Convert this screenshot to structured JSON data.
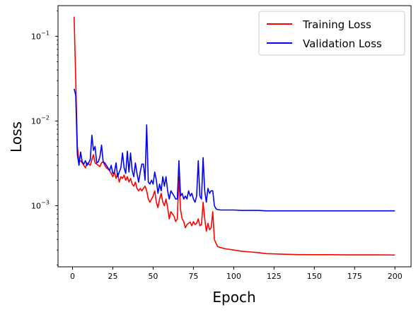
{
  "chart_data": {
    "type": "line",
    "title": "",
    "xlabel": "Epoch",
    "ylabel": "Loss",
    "xscale": "linear",
    "yscale": "log",
    "xlim": [
      -9,
      210
    ],
    "ylim": [
      0.00019,
      0.23
    ],
    "xticks": [
      0,
      25,
      50,
      75,
      100,
      125,
      150,
      175,
      200
    ],
    "xtick_labels": [
      "0",
      "25",
      "50",
      "75",
      "100",
      "125",
      "150",
      "175",
      "200"
    ],
    "yticks": [
      0.001,
      0.01,
      0.1
    ],
    "ytick_labels": [
      "10",
      "10",
      "10"
    ],
    "ytick_exponents": [
      "−3",
      "−2",
      "−1"
    ],
    "grid": false,
    "legend_position": "top-right",
    "series": [
      {
        "name": "Training Loss",
        "color": "#ff0000",
        "x": [
          1,
          2,
          3,
          4,
          5,
          6,
          7,
          8,
          9,
          10,
          11,
          12,
          13,
          14,
          15,
          16,
          17,
          18,
          19,
          20,
          21,
          22,
          23,
          24,
          25,
          26,
          27,
          28,
          29,
          30,
          31,
          32,
          33,
          34,
          35,
          36,
          37,
          38,
          39,
          40,
          41,
          42,
          43,
          44,
          45,
          46,
          47,
          48,
          49,
          50,
          51,
          52,
          53,
          54,
          55,
          56,
          57,
          58,
          59,
          60,
          61,
          62,
          63,
          64,
          65,
          66,
          67,
          68,
          69,
          70,
          71,
          72,
          73,
          74,
          75,
          76,
          77,
          78,
          79,
          80,
          81,
          82,
          83,
          84,
          85,
          86,
          87,
          88,
          89,
          90,
          92,
          95,
          100,
          105,
          110,
          115,
          120,
          130,
          140,
          150,
          160,
          170,
          180,
          190,
          200
        ],
        "values": [
          0.17,
          0.03,
          0.005,
          0.0033,
          0.0034,
          0.0032,
          0.003,
          0.0028,
          0.0032,
          0.0031,
          0.003,
          0.0035,
          0.004,
          0.0032,
          0.0031,
          0.003,
          0.0029,
          0.0032,
          0.0033,
          0.003,
          0.0028,
          0.0027,
          0.0026,
          0.0024,
          0.0022,
          0.0025,
          0.0021,
          0.0024,
          0.0019,
          0.0022,
          0.0021,
          0.0023,
          0.002,
          0.0022,
          0.0019,
          0.0021,
          0.0018,
          0.0017,
          0.0019,
          0.0016,
          0.0015,
          0.0016,
          0.0015,
          0.0016,
          0.0017,
          0.0015,
          0.0012,
          0.0011,
          0.0012,
          0.0013,
          0.0015,
          0.0011,
          0.00095,
          0.0012,
          0.0014,
          0.0011,
          0.001,
          0.0012,
          0.00095,
          0.0007,
          0.00085,
          0.0008,
          0.00075,
          0.00065,
          0.0007,
          0.0022,
          0.0009,
          0.0007,
          0.00065,
          0.00055,
          0.0006,
          0.00062,
          0.00064,
          0.00058,
          0.00065,
          0.0006,
          0.00062,
          0.0007,
          0.00058,
          0.0006,
          0.0011,
          0.0007,
          0.0005,
          0.00062,
          0.00052,
          0.00055,
          0.00085,
          0.0004,
          0.00036,
          0.00033,
          0.00032,
          0.00031,
          0.0003,
          0.00029,
          0.000285,
          0.00028,
          0.000272,
          0.000268,
          0.000265,
          0.000264,
          0.000264,
          0.000263,
          0.000263,
          0.000263,
          0.000262
        ]
      },
      {
        "name": "Validation Loss",
        "color": "#0000ff",
        "x": [
          1,
          2,
          3,
          4,
          5,
          6,
          7,
          8,
          9,
          10,
          11,
          12,
          13,
          14,
          15,
          16,
          17,
          18,
          19,
          20,
          21,
          22,
          23,
          24,
          25,
          26,
          27,
          28,
          29,
          30,
          31,
          32,
          33,
          34,
          35,
          36,
          37,
          38,
          39,
          40,
          41,
          42,
          43,
          44,
          45,
          46,
          47,
          48,
          49,
          50,
          51,
          52,
          53,
          54,
          55,
          56,
          57,
          58,
          59,
          60,
          61,
          62,
          63,
          64,
          65,
          66,
          67,
          68,
          69,
          70,
          71,
          72,
          73,
          74,
          75,
          76,
          77,
          78,
          79,
          80,
          81,
          82,
          83,
          84,
          85,
          86,
          87,
          88,
          89,
          90,
          92,
          95,
          100,
          105,
          110,
          115,
          120,
          130,
          140,
          150,
          160,
          170,
          180,
          190,
          200
        ],
        "values": [
          0.024,
          0.02,
          0.004,
          0.003,
          0.0043,
          0.0033,
          0.0031,
          0.0034,
          0.003,
          0.0032,
          0.0035,
          0.0068,
          0.0045,
          0.005,
          0.0032,
          0.0033,
          0.0038,
          0.0052,
          0.0033,
          0.0032,
          0.003,
          0.0028,
          0.0026,
          0.003,
          0.0024,
          0.0025,
          0.0032,
          0.0022,
          0.0025,
          0.0028,
          0.0042,
          0.0028,
          0.0024,
          0.0044,
          0.0025,
          0.0042,
          0.0026,
          0.0022,
          0.0032,
          0.0024,
          0.0019,
          0.0025,
          0.0031,
          0.0031,
          0.002,
          0.009,
          0.0019,
          0.0018,
          0.002,
          0.0018,
          0.0025,
          0.002,
          0.0014,
          0.0018,
          0.0015,
          0.0022,
          0.0017,
          0.0022,
          0.0015,
          0.0012,
          0.0015,
          0.0014,
          0.0013,
          0.0012,
          0.0012,
          0.0034,
          0.0013,
          0.0014,
          0.0012,
          0.0013,
          0.0012,
          0.0015,
          0.0013,
          0.0014,
          0.0012,
          0.0011,
          0.0013,
          0.0034,
          0.0013,
          0.0012,
          0.0037,
          0.0015,
          0.0011,
          0.0016,
          0.0014,
          0.0015,
          0.0015,
          0.001,
          0.00092,
          0.0009,
          0.00089,
          0.00089,
          0.00089,
          0.00088,
          0.00088,
          0.00088,
          0.00087,
          0.00087,
          0.00087,
          0.00087,
          0.00087,
          0.00087,
          0.00087,
          0.00087,
          0.00087
        ]
      }
    ]
  }
}
